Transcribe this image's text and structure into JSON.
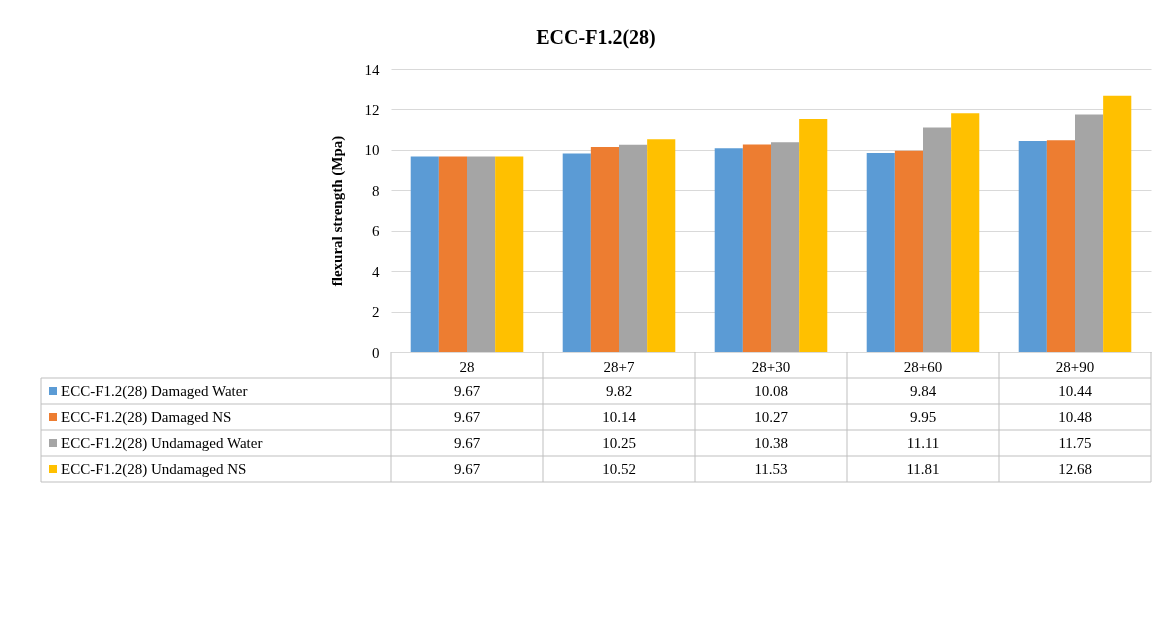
{
  "chart_data": {
    "type": "bar",
    "title": "ECC-F1.2(28)",
    "ylabel": "flexural strength (Mpa)",
    "categories": [
      "28",
      "28+7",
      "28+30",
      "28+60",
      "28+90"
    ],
    "series": [
      {
        "name": "ECC-F1.2(28) Damaged Water",
        "color": "#5b9bd5",
        "values": [
          9.67,
          9.82,
          10.08,
          9.84,
          10.44
        ]
      },
      {
        "name": "ECC-F1.2(28) Damaged NS",
        "color": "#ed7d31",
        "values": [
          9.67,
          10.14,
          10.27,
          9.95,
          10.48
        ]
      },
      {
        "name": "ECC-F1.2(28) Undamaged Water",
        "color": "#a5a5a5",
        "values": [
          9.67,
          10.25,
          10.38,
          11.11,
          11.75
        ]
      },
      {
        "name": "ECC-F1.2(28) Undamaged NS",
        "color": "#ffc000",
        "values": [
          9.67,
          10.52,
          11.53,
          11.81,
          12.68
        ]
      }
    ],
    "ylim": [
      0,
      14
    ],
    "yticks": [
      0,
      2,
      4,
      6,
      8,
      10,
      12,
      14
    ],
    "grid": "y",
    "legend": "bottom",
    "data_labels": true
  }
}
